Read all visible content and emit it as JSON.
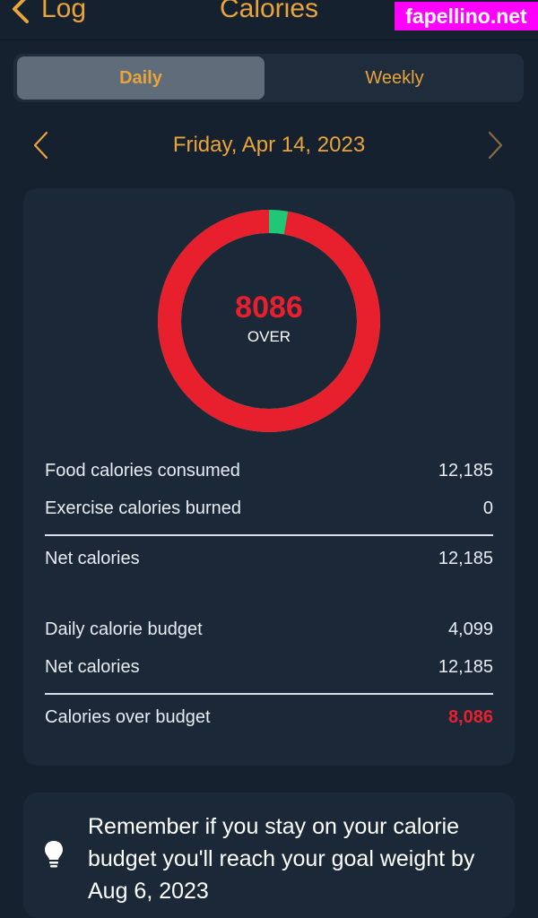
{
  "header": {
    "back_label": "Log",
    "title": "Calories",
    "watermark": "fapellino.net"
  },
  "tabs": [
    {
      "label": "Daily",
      "selected": true
    },
    {
      "label": "Weekly",
      "selected": false
    }
  ],
  "date": "Friday, Apr 14, 2023",
  "ring": {
    "value": "8086",
    "label": "OVER",
    "budget": 4099,
    "consumed": 12185,
    "colors": {
      "green": "#1fc776",
      "red": "#e8202e"
    }
  },
  "rows": {
    "food": {
      "label": "Food calories consumed",
      "value": "12,185"
    },
    "exercise": {
      "label": "Exercise calories burned",
      "value": "0"
    },
    "net1": {
      "label": "Net calories",
      "value": "12,185"
    },
    "budget": {
      "label": "Daily calorie budget",
      "value": "4,099"
    },
    "net2": {
      "label": "Net calories",
      "value": "12,185"
    },
    "over": {
      "label": "Calories over budget",
      "value": "8,086"
    }
  },
  "tip": {
    "text": "Remember if you stay on your calorie budget you'll reach your goal weight by Aug 6, 2023"
  },
  "colors": {
    "accent": "#e9a43a",
    "background": "#16212f",
    "card": "#1b2838",
    "over": "#e8202e",
    "ok": "#1fc776"
  }
}
